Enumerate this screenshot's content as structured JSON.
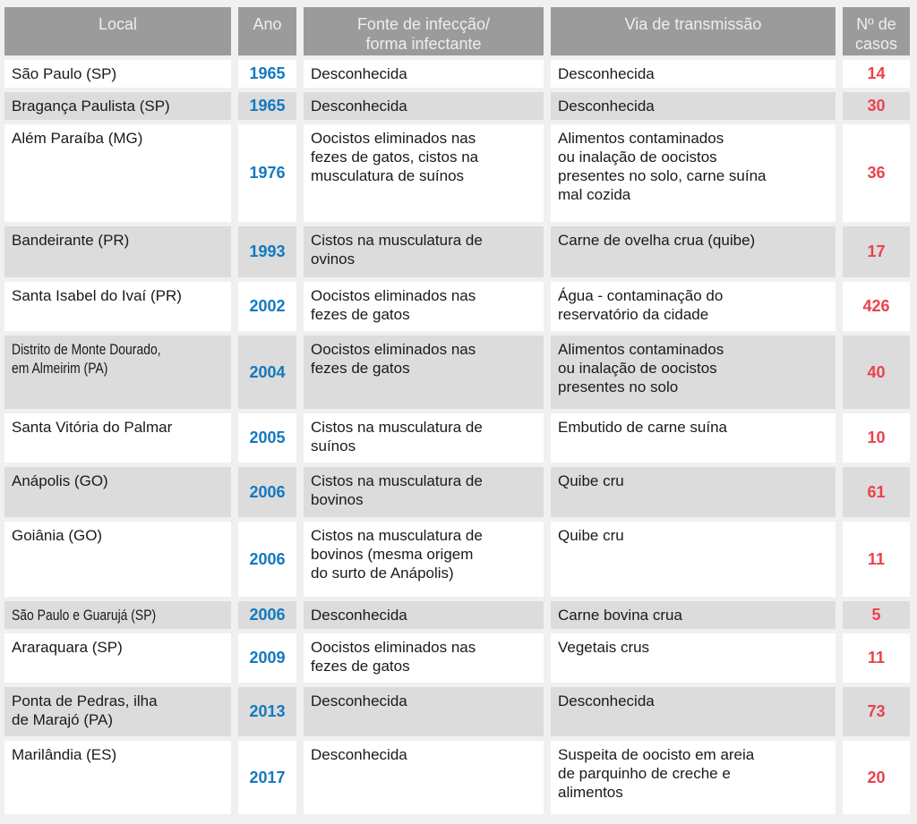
{
  "colors": {
    "header_bg": "#9b9b9b",
    "header_text": "#eeeeee",
    "row_alt_bg": "#dcdcdc",
    "row_bg": "#ffffff",
    "year_blue": "#1379bf",
    "cases_red": "#ed414c",
    "page_bg": "#f0f0f0"
  },
  "table": {
    "headers": {
      "local": "Local",
      "ano": "Ano",
      "fonte": "Fonte de infecção/\nforma infectante",
      "via": "Via de transmissão",
      "casos": "Nº de\ncasos"
    },
    "rows": [
      {
        "local": "São Paulo (SP)",
        "ano": "1965",
        "fonte": "Desconhecida",
        "via": "Desconhecida",
        "casos": "14"
      },
      {
        "local": "Bragança Paulista (SP)",
        "ano": "1965",
        "fonte": "Desconhecida",
        "via": "Desconhecida",
        "casos": "30"
      },
      {
        "local": "Além Paraíba (MG)",
        "ano": "1976",
        "fonte": "Oocistos eliminados nas\nfezes de gatos, cistos na\nmusculatura de suínos",
        "via": "Alimentos contaminados\nou inalação de oocistos\npresentes no solo, carne suína\nmal cozida",
        "casos": "36"
      },
      {
        "local": "Bandeirante (PR)",
        "ano": "1993",
        "fonte": "Cistos na musculatura de\novinos",
        "via": "Carne de ovelha crua (quibe)",
        "casos": "17"
      },
      {
        "local": "Santa Isabel do Ivaí (PR)",
        "ano": "2002",
        "fonte": "Oocistos eliminados nas\nfezes de gatos",
        "via": "Água - contaminação do\nreservatório da cidade",
        "casos": "426"
      },
      {
        "local": "Distrito de Monte Dourado,\nem Almeirim (PA)",
        "ano": "2004",
        "fonte": "Oocistos eliminados nas\nfezes de gatos",
        "via": "Alimentos contaminados\nou inalação de oocistos\npresentes no solo",
        "casos": "40",
        "condensed": true
      },
      {
        "local": "Santa Vitória do Palmar",
        "ano": "2005",
        "fonte": "Cistos na musculatura de\nsuínos",
        "via": "Embutido de carne suína",
        "casos": "10"
      },
      {
        "local": "Anápolis (GO)",
        "ano": "2006",
        "fonte": "Cistos na musculatura de\nbovinos",
        "via": "Quibe cru",
        "casos": "61"
      },
      {
        "local": "Goiânia (GO)",
        "ano": "2006",
        "fonte": "Cistos na musculatura de\nbovinos (mesma origem\ndo surto de Anápolis)",
        "via": "Quibe cru",
        "casos": "11"
      },
      {
        "local": "São Paulo e Guarujá (SP)",
        "ano": "2006",
        "fonte": "Desconhecida",
        "via": "Carne bovina crua",
        "casos": "5",
        "condensed": true
      },
      {
        "local": "Araraquara (SP)",
        "ano": "2009",
        "fonte": "Oocistos eliminados nas\nfezes de gatos",
        "via": "Vegetais crus",
        "casos": "11"
      },
      {
        "local": "Ponta de Pedras, ilha\nde Marajó (PA)",
        "ano": "2013",
        "fonte": "Desconhecida",
        "via": "Desconhecida",
        "casos": "73"
      },
      {
        "local": "Marilândia (ES)",
        "ano": "2017",
        "fonte": "Desconhecida",
        "via": "Suspeita de oocisto em areia\nde parquinho de creche e\nalimentos",
        "casos": "20"
      }
    ]
  }
}
